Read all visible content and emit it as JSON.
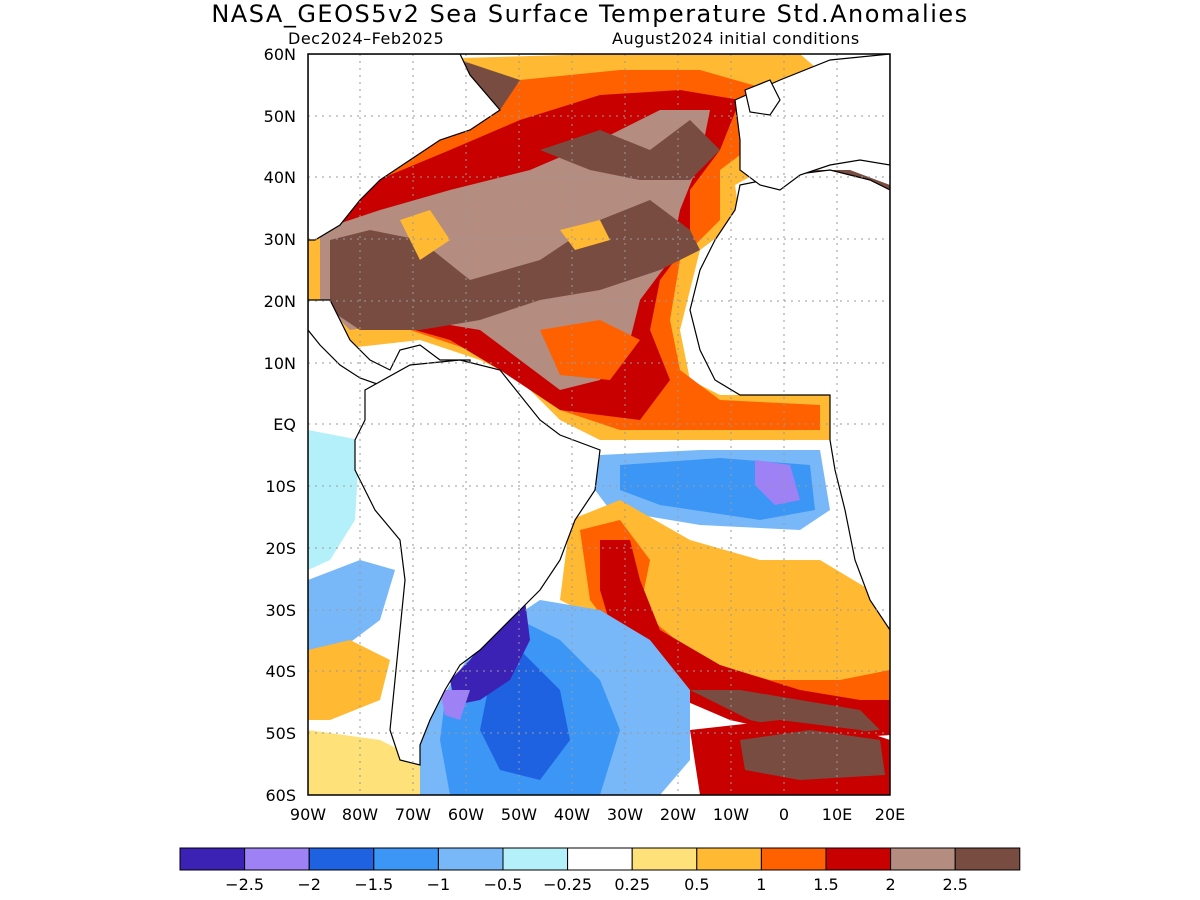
{
  "header": {
    "title": "NASA_GEOS5v2 Sea Surface Temperature Std.Anomalies",
    "period": "Dec2024–Feb2025",
    "initial_conditions": "August2024 initial conditions"
  },
  "map": {
    "lat_labels": [
      "60N",
      "50N",
      "40N",
      "30N",
      "20N",
      "10N",
      "EQ",
      "10S",
      "20S",
      "30S",
      "40S",
      "50S",
      "60S"
    ],
    "lon_labels": [
      "90W",
      "80W",
      "70W",
      "60W",
      "50W",
      "40W",
      "30W",
      "20W",
      "10W",
      "0",
      "10E",
      "20E"
    ],
    "lat_range": [
      -60,
      60
    ],
    "lon_range": [
      -90,
      20
    ],
    "grid": true,
    "grid_style": "dotted"
  },
  "colorbar": {
    "colors": [
      "#3b22b4",
      "#9e82f5",
      "#1e62e1",
      "#3c96f5",
      "#78b8f8",
      "#b4f0fa",
      "#ffffff",
      "#ffe17a",
      "#ffb932",
      "#ff6000",
      "#c80000",
      "#b48c80",
      "#784c40"
    ],
    "tick_labels": [
      "−2.5",
      "−2",
      "−1.5",
      "−1",
      "−0.5",
      "−0.25",
      "0.25",
      "0.5",
      "1",
      "1.5",
      "2",
      "2.5"
    ]
  }
}
